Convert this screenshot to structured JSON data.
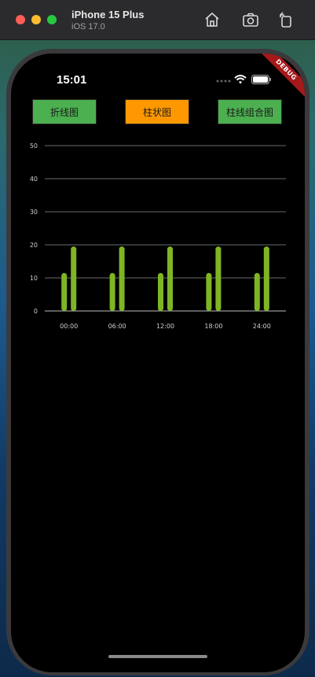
{
  "simulator": {
    "device_name": "iPhone 15 Plus",
    "os_version": "iOS 17.0",
    "icons": [
      "home-icon",
      "screenshot-icon",
      "rotate-icon"
    ]
  },
  "status_bar": {
    "time": "15:01"
  },
  "debug_banner": "DEBUG",
  "buttons": {
    "line": "折线图",
    "bar": "柱状图",
    "combo": "柱线组合图"
  },
  "colors": {
    "bar": "#7fb525",
    "active_button": "#ff9800",
    "inactive_button": "#4caf50"
  },
  "chart_data": {
    "type": "bar",
    "categories": [
      "00:00",
      "06:00",
      "12:00",
      "18:00",
      "24:00"
    ],
    "series": [
      {
        "values": [
          11.5,
          11.5,
          11.5,
          11.5,
          11.5
        ]
      },
      {
        "values": [
          19.5,
          19.5,
          19.5,
          19.5,
          19.5
        ]
      }
    ],
    "yticks": [
      0,
      10,
      20,
      30,
      40,
      50
    ],
    "ylim": [
      0,
      50
    ],
    "grid": true
  }
}
